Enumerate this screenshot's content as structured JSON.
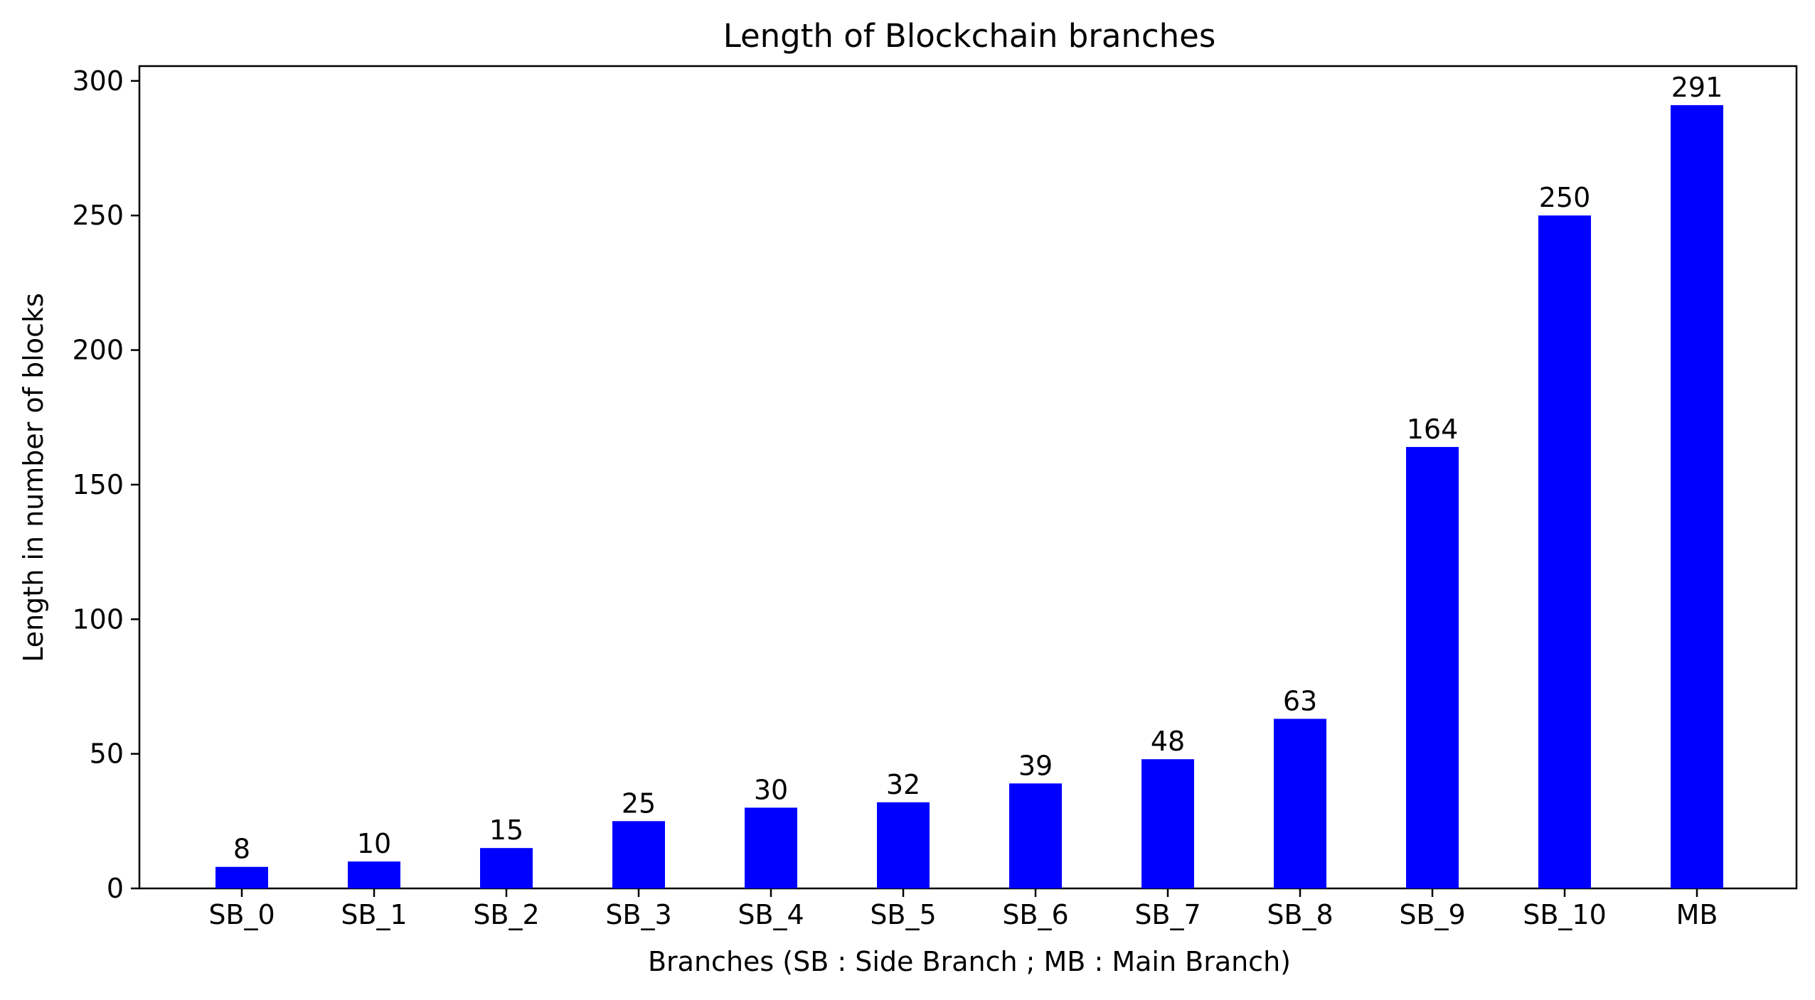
{
  "chart_data": {
    "type": "bar",
    "title": "Length of Blockchain branches",
    "xlabel": "Branches (SB : Side Branch ; MB : Main Branch)",
    "ylabel": "Length in number of blocks",
    "categories": [
      "SB_0",
      "SB_1",
      "SB_2",
      "SB_3",
      "SB_4",
      "SB_5",
      "SB_6",
      "SB_7",
      "SB_8",
      "SB_9",
      "SB_10",
      "MB"
    ],
    "values": [
      8,
      10,
      15,
      25,
      30,
      32,
      39,
      48,
      63,
      164,
      250,
      291
    ],
    "ylim": [
      0,
      305.5
    ],
    "yticks": [
      0,
      50,
      100,
      150,
      200,
      250,
      300
    ],
    "bar_color": "#0000ff",
    "data_labels": true,
    "grid": false,
    "legend": "none"
  }
}
